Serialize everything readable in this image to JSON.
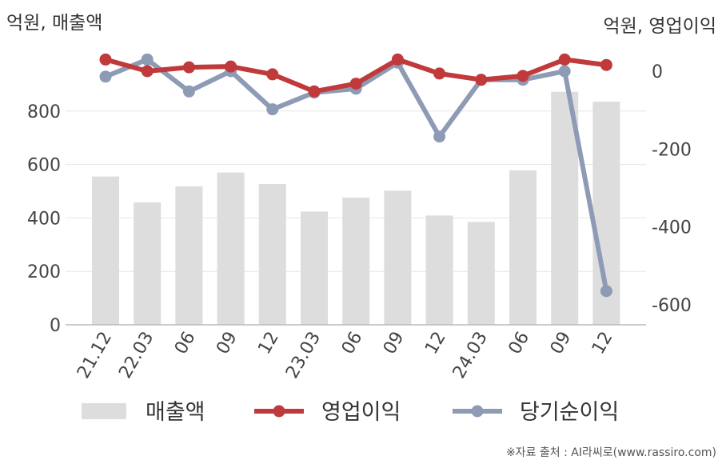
{
  "chart_data": {
    "type": "bar+line",
    "left_unit_label": "억원, 매출액",
    "right_unit_label": "억원, 영업이익",
    "categories": [
      "21.12",
      "22.03",
      "06",
      "09",
      "12",
      "23.03",
      "06",
      "09",
      "12",
      "24.03",
      "06",
      "09",
      "12"
    ],
    "left_axis": {
      "ticks": [
        0,
        200,
        400,
        600,
        800
      ],
      "ylim": [
        0,
        1000
      ]
    },
    "right_axis": {
      "ticks": [
        0,
        -200,
        -400,
        -600
      ],
      "ylim": [
        -655,
        55
      ]
    },
    "series": [
      {
        "name": "매출액",
        "type": "bar",
        "axis": "left",
        "color": "#dddddd",
        "values": [
          555,
          458,
          518,
          570,
          527,
          424,
          476,
          502,
          409,
          385,
          578,
          872,
          835
        ]
      },
      {
        "name": "영업이익",
        "type": "line",
        "axis": "right",
        "color": "#c0393b",
        "values": [
          30,
          0,
          10,
          12,
          -8,
          -52,
          -32,
          30,
          -6,
          -22,
          -12,
          30,
          16
        ]
      },
      {
        "name": "당기순이익",
        "type": "line",
        "axis": "right",
        "color": "#8e9bb5",
        "values": [
          -14,
          30,
          -52,
          0,
          -98,
          -55,
          -45,
          22,
          -168,
          -22,
          -22,
          0,
          -565
        ]
      }
    ],
    "legend_position": "bottom",
    "grid": true
  },
  "source_note": "※자료 출처 : AI라씨로(www.rassiro.com)"
}
